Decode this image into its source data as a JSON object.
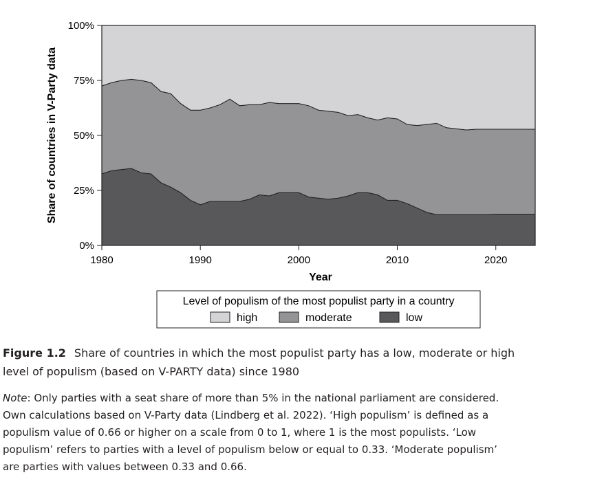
{
  "chart_data": {
    "type": "area",
    "stacked": true,
    "xlabel": "Year",
    "ylabel": "Share of countries in V-Party data",
    "xlim": [
      1980,
      2024
    ],
    "ylim": [
      0,
      100
    ],
    "x_ticks": [
      1980,
      1990,
      2000,
      2010,
      2020
    ],
    "y_ticks": [
      0,
      25,
      50,
      75,
      100
    ],
    "y_tick_labels": [
      "0%",
      "25%",
      "50%",
      "75%",
      "100%"
    ],
    "x": [
      1980,
      1981,
      1982,
      1983,
      1984,
      1985,
      1986,
      1987,
      1988,
      1989,
      1990,
      1991,
      1992,
      1993,
      1994,
      1995,
      1996,
      1997,
      1998,
      1999,
      2000,
      2001,
      2002,
      2003,
      2004,
      2005,
      2006,
      2007,
      2008,
      2009,
      2010,
      2011,
      2012,
      2013,
      2014,
      2015,
      2016,
      2017,
      2018,
      2019,
      2020,
      2021,
      2022,
      2023,
      2024
    ],
    "series": [
      {
        "name": "low",
        "color": "#58585a",
        "values": [
          32.5,
          34,
          34.5,
          35,
          33,
          32.5,
          28.5,
          26.5,
          24,
          20.5,
          18.5,
          20,
          20,
          20,
          20,
          21,
          23,
          22.5,
          24,
          24,
          24,
          22,
          21.5,
          21,
          21.5,
          22.5,
          24,
          24,
          23,
          20.5,
          20.5,
          19,
          17,
          15,
          14,
          14,
          14,
          14,
          14,
          14,
          14.2,
          14.2,
          14.2,
          14.2,
          14.2
        ]
      },
      {
        "name": "moderate",
        "color": "#949497",
        "values": [
          40,
          40,
          40.5,
          40.5,
          42,
          41.5,
          41.5,
          42.5,
          40.5,
          41,
          43,
          42.5,
          44,
          46.5,
          43.5,
          43,
          41,
          42.5,
          40.5,
          40.5,
          40.5,
          41.5,
          40,
          40,
          39,
          36.5,
          35.5,
          34,
          34,
          37.5,
          37,
          36,
          37.5,
          40,
          41.5,
          39.5,
          39,
          38.5,
          38.8,
          38.8,
          38.6,
          38.6,
          38.6,
          38.6,
          38.6
        ]
      },
      {
        "name": "high",
        "color": "#d4d4d6",
        "values": [
          27.5,
          26,
          25,
          24.5,
          25,
          26,
          30,
          31,
          35.5,
          38.5,
          38.5,
          37.5,
          36,
          33.5,
          36.5,
          36,
          36,
          35,
          35.5,
          35.5,
          35.5,
          36.5,
          38.5,
          39,
          39.5,
          41,
          40.5,
          42,
          43,
          42,
          42.5,
          45,
          45.5,
          45,
          44.5,
          46.5,
          47,
          47.5,
          47.2,
          47.2,
          47.2,
          47.2,
          47.2,
          47.2,
          47.2
        ]
      }
    ],
    "legend": {
      "title": "Level of populism of the most populist party in a country",
      "position": "bottom"
    },
    "grid": false
  },
  "caption": {
    "label": "Figure 1.2",
    "text_line1": "Share of countries in which the most populist party has a low, moderate or high",
    "text_line2": "level of populism (based on V-PARTY data) since 1980"
  },
  "note": {
    "label": "Note",
    "line1": ": Only parties with a seat share of more than 5% in the national parliament are considered.",
    "line2": "Own calculations based on V-Party data (Lindberg et al. 2022). ‘High populism’ is defined as a",
    "line3": "populism value of 0.66 or higher on a scale from 0 to 1, where 1 is the most populists. ‘Low",
    "line4": "populism’ refers to parties with a level of populism below or equal to 0.33. ‘Moderate populism’",
    "line5": "are parties with values between 0.33 and 0.66."
  }
}
